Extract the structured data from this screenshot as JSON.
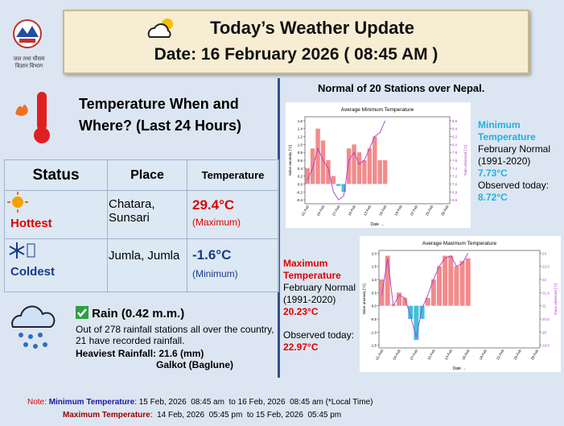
{
  "header": {
    "title": "Today’s Weather Update",
    "date": "Date: 16 February 2026  ( 08:45 AM )",
    "logo_text_1": "जल तथा मौसम",
    "logo_text_2": "विज्ञान विभाग"
  },
  "temperature": {
    "title_1": "Temperature When and",
    "title_2": "Where?  (Last 24 Hours)",
    "table": {
      "header": [
        "Status",
        "Place",
        "Temperature"
      ],
      "rows": [
        [
          "Hottest",
          "Chatara, Sunsari",
          "29.4°C",
          "(Maximum)"
        ],
        [
          "Coldest",
          "Jumla, Jumla",
          "-1.6°C",
          "(Minimum)"
        ]
      ]
    }
  },
  "rain": {
    "heading": "Rain  (0.42 m.m.)",
    "text": "Out of 278 rainfall stations all over the country, 21 have recorded rainfall.",
    "heaviest": "Heaviest Rainfall: 21.6 (mm)",
    "station": "Galkot (Baglune)"
  },
  "normals": {
    "title": "Normal of 20 Stations over Nepal.",
    "minimum": {
      "label": "Minimum Temperature",
      "normal": "February Normal (1991-2020)",
      "normal_value": "7.73°C",
      "observed": "Observed today:",
      "observed_value": "8.72°C"
    },
    "maximum": {
      "label": "Maximum Temperature",
      "normal": "February Normal (1991-2020)",
      "normal_value": "20.23°C",
      "observed": "Observed today:",
      "observed_value": "22.97°C"
    }
  },
  "note": {
    "label": "Note:",
    "min_label": "Minimum Temperature",
    "min_text": ": 15 Feb, 2026  08:45 am  to 16 Feb, 2026  08:45 am (*Local Time)",
    "max_label": "Maximum Temperature",
    "max_text": ":  14 Feb, 2026  05:45 pm  to 15 Feb, 2026  05:45 pm"
  },
  "chart_data": [
    {
      "type": "bar",
      "title": "Average Minimum Temperature",
      "xlabel": "Date →",
      "ylabel": "Value anomaly [°C]",
      "y2label": "Tmin observed [°C]",
      "categories": [
        "01-Feb",
        null,
        null,
        "04-Feb",
        null,
        null,
        "07-Feb",
        null,
        null,
        "10-Feb",
        null,
        null,
        "13-Feb",
        null,
        null,
        "16-Feb",
        null,
        null,
        "19-Feb",
        null,
        null,
        "22-Feb",
        null,
        null,
        "25-Feb",
        null,
        null,
        "28-Feb"
      ],
      "ylim": [
        -0.5,
        1.7
      ],
      "yticks": [
        -0.4,
        -0.2,
        {
          "value": 0,
          "label": "0.0"
        },
        0.2,
        0.4,
        0.6,
        0.8,
        {
          "value": 1,
          "label": "1.0"
        },
        1.2,
        1.4,
        1.6
      ],
      "y2lim": [
        6.5,
        8.7
      ],
      "y2ticks": [
        6.6,
        6.8,
        {
          "value": 7,
          "label": "7.0"
        },
        7.2,
        7.4,
        7.6,
        7.8,
        {
          "value": 8,
          "label": "8.0"
        },
        8.2,
        8.4,
        8.6
      ],
      "series": [
        {
          "color": "#f28b8b",
          "negative_color": "#3fc1dc",
          "values": [
            0.4,
            0.9,
            1.4,
            1.1,
            0.6,
            0.2,
            -0.05,
            -0.2,
            0.9,
            1.0,
            0.8,
            0.6,
            0.9,
            1.2,
            0.6,
            0.6,
            null,
            null,
            null,
            null,
            null,
            null,
            null,
            null,
            null,
            null,
            null,
            null
          ]
        },
        {
          "type": "line",
          "axis": "y2",
          "color": "#b03ad0",
          "values": [
            7.1,
            7.4,
            7.9,
            7.6,
            7.4,
            6.8,
            6.6,
            6.7,
            7.6,
            7.8,
            7.5,
            7.6,
            7.9,
            8.2,
            8.3,
            8.6,
            null,
            null,
            null,
            null,
            null,
            null,
            null,
            null,
            null,
            null,
            null,
            null
          ]
        }
      ]
    },
    {
      "type": "bar",
      "title": "Average Maximum Temperature",
      "xlabel": "Date →",
      "ylabel": "Value anomaly [°C]",
      "y2label": "Tmax observed [°C]",
      "categories": [
        "01-Feb",
        null,
        null,
        "04-Feb",
        null,
        null,
        "07-Feb",
        null,
        null,
        "10-Feb",
        null,
        null,
        "13-Feb",
        null,
        null,
        "16-Feb",
        null,
        null,
        "19-Feb",
        null,
        null,
        "22-Feb",
        null,
        null,
        "25-Feb",
        null,
        null,
        "28-Feb"
      ],
      "ylim": [
        -1.6,
        2.1
      ],
      "yticks": [
        -1.5,
        {
          "value": -1,
          "label": "-1.0"
        },
        -0.5,
        {
          "value": 0,
          "label": "0.0"
        },
        0.5,
        {
          "value": 1,
          "label": "1.0"
        },
        1.5,
        {
          "value": 2,
          "label": "2.0"
        }
      ],
      "y2lim": [
        19.4,
        23.1
      ],
      "y2ticks": [
        19.5,
        20,
        20.5,
        21,
        21.5,
        22,
        22.5,
        23
      ],
      "series": [
        {
          "color": "#f28b8b",
          "negative_color": "#3fc1dc",
          "values": [
            1.0,
            1.9,
            0.05,
            0.5,
            0.3,
            -0.5,
            -1.3,
            -0.5,
            0.3,
            1.0,
            1.5,
            1.9,
            1.9,
            1.5,
            1.7,
            1.8,
            null,
            null,
            null,
            null,
            null,
            null,
            null,
            null,
            null,
            null,
            null,
            null
          ]
        },
        {
          "type": "line",
          "axis": "y2",
          "color": "#b03ad0",
          "values": [
            21.4,
            22.8,
            21.0,
            21.4,
            21.3,
            20.6,
            19.8,
            20.9,
            21.4,
            22.0,
            22.5,
            22.8,
            22.9,
            22.5,
            22.6,
            23.0,
            null,
            null,
            null,
            null,
            null,
            null,
            null,
            null,
            null,
            null,
            null,
            null
          ]
        }
      ]
    }
  ]
}
